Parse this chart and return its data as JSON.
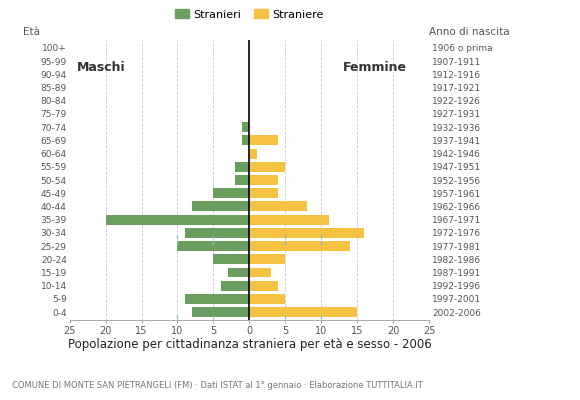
{
  "age_groups": [
    "0-4",
    "5-9",
    "10-14",
    "15-19",
    "20-24",
    "25-29",
    "30-34",
    "35-39",
    "40-44",
    "45-49",
    "50-54",
    "55-59",
    "60-64",
    "65-69",
    "70-74",
    "75-79",
    "80-84",
    "85-89",
    "90-94",
    "95-99",
    "100+"
  ],
  "birth_years": [
    "2002-2006",
    "1997-2001",
    "1992-1996",
    "1987-1991",
    "1982-1986",
    "1977-1981",
    "1972-1976",
    "1967-1971",
    "1962-1966",
    "1957-1961",
    "1952-1956",
    "1947-1951",
    "1942-1946",
    "1937-1941",
    "1932-1936",
    "1927-1931",
    "1922-1926",
    "1917-1921",
    "1912-1916",
    "1907-1911",
    "1906 o prima"
  ],
  "males": [
    8,
    9,
    4,
    3,
    5,
    10,
    9,
    20,
    8,
    5,
    2,
    2,
    0,
    1,
    1,
    0,
    0,
    0,
    0,
    0,
    0
  ],
  "females": [
    15,
    5,
    4,
    3,
    5,
    14,
    16,
    11,
    8,
    4,
    4,
    5,
    1,
    4,
    0,
    0,
    0,
    0,
    0,
    0,
    0
  ],
  "male_color": "#6a9e5f",
  "female_color": "#f5c242",
  "bg_color": "#ffffff",
  "grid_color": "#cccccc",
  "grid_linestyle": "--",
  "highlight_color": "#7fbfbf",
  "title": "Popolazione per cittadinanza straniera per età e sesso - 2006",
  "subtitle": "COMUNE DI MONTE SAN PIETRANGELI (FM) · Dati ISTAT al 1° gennaio · Elaborazione TUTTITALIA.IT",
  "eta_label": "Età",
  "anno_label": "Anno di nascita",
  "label_maschi": "Maschi",
  "label_femmine": "Femmine",
  "legend_males": "Stranieri",
  "legend_females": "Straniere",
  "xlim": 25,
  "bar_height": 0.75,
  "dpi": 100,
  "figsize": [
    5.8,
    4.0
  ]
}
